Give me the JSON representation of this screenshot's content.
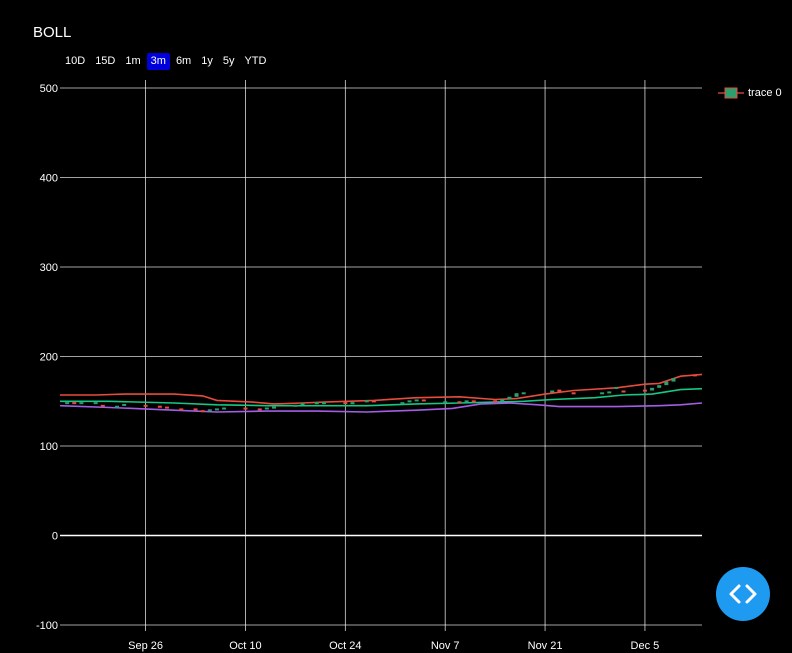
{
  "page": {
    "title": "BOLL"
  },
  "range_selector": {
    "buttons": [
      "10D",
      "15D",
      "1m",
      "3m",
      "6m",
      "1y",
      "5y",
      "YTD"
    ],
    "active": "3m"
  },
  "legend": {
    "label": "trace 0",
    "icon": "candlestick-icon"
  },
  "fab": {
    "icon": "code-brackets-icon"
  },
  "colors": {
    "upper": "#e74c3c",
    "middle": "#16c784",
    "lower": "#a45ee5",
    "candle_up": "#2ca06c",
    "candle_down": "#e74c3c",
    "grid": "#ffffff",
    "background": "#000000",
    "fab": "#1e9bf0",
    "range_active": "#0000dd"
  },
  "chart_data": {
    "type": "line",
    "title": "BOLL",
    "xlabel": "",
    "ylabel": "",
    "ylim": [
      -100,
      500
    ],
    "y_ticks": [
      -100,
      0,
      100,
      200,
      300,
      400,
      500
    ],
    "x_ticks": [
      {
        "date": "2022-09-26",
        "label": "Sep 26"
      },
      {
        "date": "2022-10-10",
        "label": "Oct 10"
      },
      {
        "date": "2022-10-24",
        "label": "Oct 24"
      },
      {
        "date": "2022-11-07",
        "label": "Nov 7"
      },
      {
        "date": "2022-11-21",
        "label": "Nov 21"
      },
      {
        "date": "2022-12-05",
        "label": "Dec 5"
      }
    ],
    "xlim": [
      "2022-09-14",
      "2022-12-13"
    ],
    "grid": true,
    "legend_position": "top-right",
    "series": [
      {
        "role": "upper",
        "points": [
          [
            "2022-09-14",
            157
          ],
          [
            "2022-09-19",
            157
          ],
          [
            "2022-09-23",
            158
          ],
          [
            "2022-09-30",
            158
          ],
          [
            "2022-10-04",
            156
          ],
          [
            "2022-10-06",
            151
          ],
          [
            "2022-10-11",
            149
          ],
          [
            "2022-10-14",
            147
          ],
          [
            "2022-10-18",
            148
          ],
          [
            "2022-10-21",
            149
          ],
          [
            "2022-10-28",
            151
          ],
          [
            "2022-11-03",
            154
          ],
          [
            "2022-11-09",
            155
          ],
          [
            "2022-11-14",
            152
          ],
          [
            "2022-11-17",
            153
          ],
          [
            "2022-11-21",
            158
          ],
          [
            "2022-11-25",
            162
          ],
          [
            "2022-12-01",
            165
          ],
          [
            "2022-12-05",
            169
          ],
          [
            "2022-12-07",
            170
          ],
          [
            "2022-12-10",
            178
          ],
          [
            "2022-12-13",
            180
          ]
        ]
      },
      {
        "role": "middle",
        "points": [
          [
            "2022-09-14",
            150
          ],
          [
            "2022-09-21",
            150
          ],
          [
            "2022-09-30",
            148
          ],
          [
            "2022-10-06",
            146
          ],
          [
            "2022-10-13",
            145
          ],
          [
            "2022-10-20",
            145
          ],
          [
            "2022-10-27",
            145
          ],
          [
            "2022-11-03",
            147
          ],
          [
            "2022-11-09",
            148
          ],
          [
            "2022-11-14",
            149
          ],
          [
            "2022-11-18",
            150
          ],
          [
            "2022-11-22",
            152
          ],
          [
            "2022-11-28",
            154
          ],
          [
            "2022-12-02",
            157
          ],
          [
            "2022-12-06",
            158
          ],
          [
            "2022-12-10",
            163
          ],
          [
            "2022-12-13",
            164
          ]
        ]
      },
      {
        "role": "lower",
        "points": [
          [
            "2022-09-14",
            145
          ],
          [
            "2022-09-21",
            143
          ],
          [
            "2022-09-30",
            140
          ],
          [
            "2022-10-06",
            138
          ],
          [
            "2022-10-13",
            139
          ],
          [
            "2022-10-20",
            139
          ],
          [
            "2022-10-27",
            138
          ],
          [
            "2022-11-03",
            140
          ],
          [
            "2022-11-08",
            142
          ],
          [
            "2022-11-12",
            147
          ],
          [
            "2022-11-16",
            148
          ],
          [
            "2022-11-20",
            146
          ],
          [
            "2022-11-23",
            144
          ],
          [
            "2022-12-01",
            144
          ],
          [
            "2022-12-07",
            145
          ],
          [
            "2022-12-10",
            146
          ],
          [
            "2022-12-13",
            148
          ]
        ]
      }
    ],
    "candles": [
      [
        "2022-09-15",
        148,
        149
      ],
      [
        "2022-09-16",
        149,
        147
      ],
      [
        "2022-09-17",
        148,
        149
      ],
      [
        "2022-09-19",
        148,
        149
      ],
      [
        "2022-09-20",
        146,
        144
      ],
      [
        "2022-09-22",
        144,
        145
      ],
      [
        "2022-09-23",
        145,
        147
      ],
      [
        "2022-09-26",
        146,
        145
      ],
      [
        "2022-09-28",
        145,
        144
      ],
      [
        "2022-09-29",
        144,
        142
      ],
      [
        "2022-10-01",
        142,
        141
      ],
      [
        "2022-10-03",
        142,
        140
      ],
      [
        "2022-10-04",
        140,
        139
      ],
      [
        "2022-10-05",
        139,
        141
      ],
      [
        "2022-10-06",
        141,
        142
      ],
      [
        "2022-10-07",
        142,
        143
      ],
      [
        "2022-10-10",
        143,
        142
      ],
      [
        "2022-10-12",
        142,
        141
      ],
      [
        "2022-10-13",
        141,
        143
      ],
      [
        "2022-10-14",
        143,
        144
      ],
      [
        "2022-10-17",
        144,
        146
      ],
      [
        "2022-10-18",
        146,
        148
      ],
      [
        "2022-10-20",
        148,
        149
      ],
      [
        "2022-10-21",
        148,
        149
      ],
      [
        "2022-10-24",
        149,
        148
      ],
      [
        "2022-10-25",
        148,
        149
      ],
      [
        "2022-10-27",
        149,
        151
      ],
      [
        "2022-10-28",
        151,
        150
      ],
      [
        "2022-11-01",
        148,
        149
      ],
      [
        "2022-11-02",
        149,
        151
      ],
      [
        "2022-11-03",
        151,
        152
      ],
      [
        "2022-11-04",
        152,
        151
      ],
      [
        "2022-11-07",
        149,
        150
      ],
      [
        "2022-11-09",
        150,
        149
      ],
      [
        "2022-11-10",
        149,
        151
      ],
      [
        "2022-11-11",
        151,
        150
      ],
      [
        "2022-11-14",
        151,
        150
      ],
      [
        "2022-11-15",
        150,
        152
      ],
      [
        "2022-11-16",
        152,
        155
      ],
      [
        "2022-11-17",
        155,
        159
      ],
      [
        "2022-11-18",
        159,
        160
      ],
      [
        "2022-11-22",
        160,
        162
      ],
      [
        "2022-11-23",
        163,
        162
      ],
      [
        "2022-11-25",
        160,
        158
      ],
      [
        "2022-11-29",
        158,
        160
      ],
      [
        "2022-11-30",
        160,
        161
      ],
      [
        "2022-12-01",
        164,
        166
      ],
      [
        "2022-12-02",
        162,
        160
      ],
      [
        "2022-12-05",
        163,
        162
      ],
      [
        "2022-12-06",
        162,
        165
      ],
      [
        "2022-12-07",
        165,
        168
      ],
      [
        "2022-12-08",
        168,
        172
      ],
      [
        "2022-12-09",
        172,
        176
      ],
      [
        "2022-12-12",
        180,
        178
      ]
    ]
  }
}
